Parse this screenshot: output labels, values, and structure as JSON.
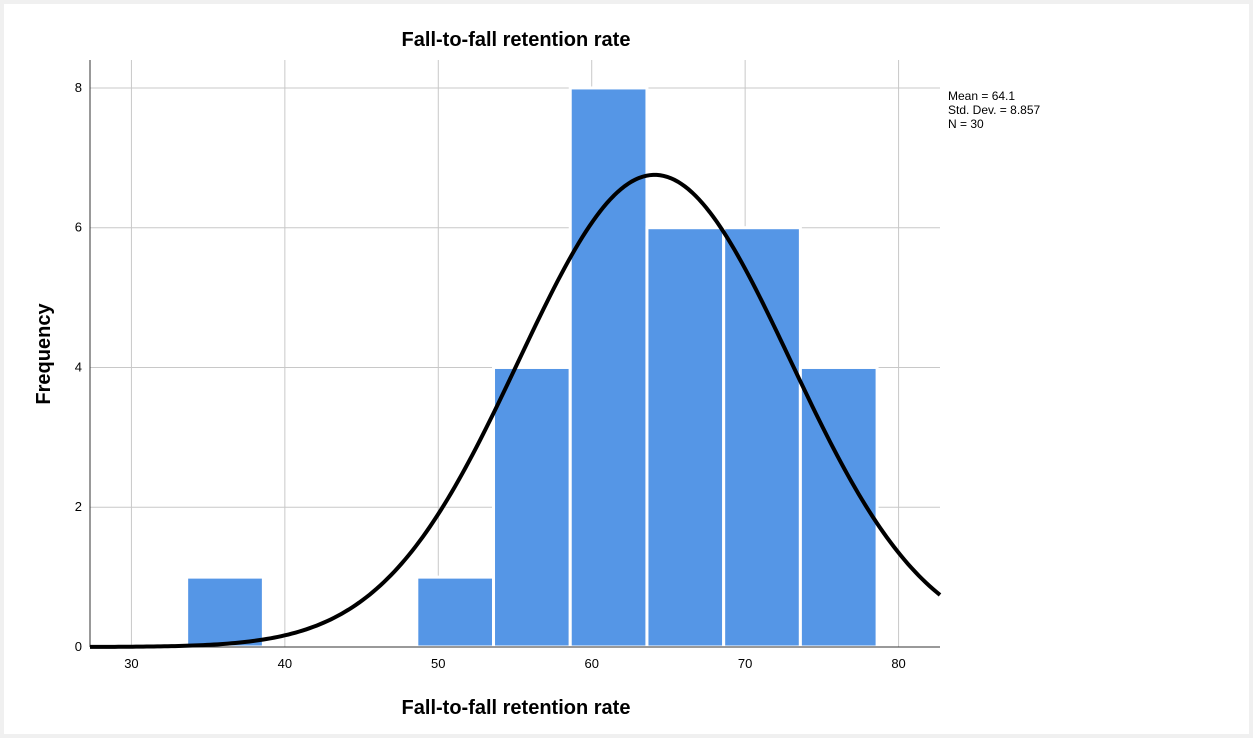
{
  "chart_data": {
    "type": "bar",
    "subtype": "histogram",
    "title": "Fall-to-fall retention rate",
    "xlabel": "Fall-to-fall retention rate",
    "ylabel": "Frequency",
    "xlim": [
      27.3,
      82.7
    ],
    "ylim": [
      0,
      8.4
    ],
    "xticks": [
      30,
      40,
      50,
      60,
      70,
      80
    ],
    "yticks": [
      0,
      2,
      4,
      6,
      8
    ],
    "grid": true,
    "bins": [
      {
        "start": 33.6,
        "end": 38.6,
        "count": 1
      },
      {
        "start": 38.6,
        "end": 43.6,
        "count": 0
      },
      {
        "start": 43.6,
        "end": 48.6,
        "count": 0
      },
      {
        "start": 48.6,
        "end": 53.6,
        "count": 1
      },
      {
        "start": 53.6,
        "end": 58.6,
        "count": 4
      },
      {
        "start": 58.6,
        "end": 63.6,
        "count": 8
      },
      {
        "start": 63.6,
        "end": 68.6,
        "count": 6
      },
      {
        "start": 68.6,
        "end": 73.6,
        "count": 6
      },
      {
        "start": 73.6,
        "end": 78.6,
        "count": 4
      }
    ],
    "normal_curve": {
      "mean": 64.1,
      "sd": 8.857,
      "n": 30,
      "bin_width": 5
    },
    "stats_box": [
      "Mean = 64.1",
      "Std. Dev. = 8.857",
      "N = 30"
    ],
    "colors": {
      "bar": "#5596e6",
      "bar_edge": "#ffffff",
      "curve": "#000000",
      "grid": "#c8c8c8",
      "axis": "#333333"
    }
  }
}
